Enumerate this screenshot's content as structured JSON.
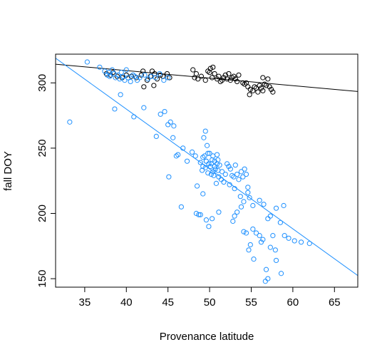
{
  "chart_data": {
    "type": "scatter",
    "title": "",
    "xlabel": "Provenance latitude",
    "ylabel": "fall DOY",
    "xlim": [
      31.5,
      67.8
    ],
    "ylim": [
      143.5,
      322
    ],
    "x_ticks": [
      35,
      40,
      45,
      50,
      55,
      60,
      65
    ],
    "y_ticks": [
      150,
      200,
      250,
      300
    ],
    "grid": false,
    "legend": "none",
    "series": [
      {
        "color": "#000000",
        "marker": "open-circle",
        "points": [
          [
            37.6,
            307
          ],
          [
            38.1,
            306
          ],
          [
            38.4,
            308
          ],
          [
            38.9,
            305
          ],
          [
            39.5,
            304
          ],
          [
            40.0,
            306
          ],
          [
            40.6,
            305
          ],
          [
            41.2,
            304
          ],
          [
            41.8,
            306
          ],
          [
            42.0,
            309
          ],
          [
            42.1,
            297
          ],
          [
            42.5,
            302
          ],
          [
            42.9,
            305
          ],
          [
            43.1,
            309
          ],
          [
            43.3,
            298
          ],
          [
            43.4,
            307
          ],
          [
            43.7,
            303
          ],
          [
            44.1,
            306
          ],
          [
            44.4,
            305
          ],
          [
            44.9,
            307
          ],
          [
            45.2,
            304
          ],
          [
            48.0,
            310
          ],
          [
            48.2,
            304
          ],
          [
            48.4,
            307
          ],
          [
            48.6,
            303
          ],
          [
            49.0,
            305
          ],
          [
            49.5,
            302
          ],
          [
            49.8,
            309
          ],
          [
            50.0,
            308
          ],
          [
            50.1,
            311
          ],
          [
            50.3,
            304
          ],
          [
            50.4,
            312
          ],
          [
            50.6,
            307
          ],
          [
            50.9,
            303
          ],
          [
            51.1,
            305
          ],
          [
            51.3,
            301
          ],
          [
            51.5,
            302
          ],
          [
            51.7,
            304
          ],
          [
            51.9,
            306
          ],
          [
            52.1,
            303
          ],
          [
            52.3,
            307
          ],
          [
            52.5,
            302
          ],
          [
            52.7,
            304
          ],
          [
            52.9,
            305
          ],
          [
            53.1,
            303
          ],
          [
            53.3,
            301
          ],
          [
            53.5,
            306
          ],
          [
            54.0,
            300
          ],
          [
            54.2,
            299
          ],
          [
            54.4,
            300
          ],
          [
            54.6,
            297
          ],
          [
            54.9,
            295
          ],
          [
            55.2,
            294
          ],
          [
            55.4,
            297
          ],
          [
            55.6,
            296
          ],
          [
            55.8,
            293
          ],
          [
            56.0,
            298
          ],
          [
            56.2,
            296
          ],
          [
            56.4,
            294
          ],
          [
            56.6,
            299
          ],
          [
            56.8,
            298
          ],
          [
            57.0,
            303
          ],
          [
            57.2,
            297
          ],
          [
            57.4,
            295
          ],
          [
            57.6,
            293
          ],
          [
            56.4,
            304
          ],
          [
            54.8,
            291
          ]
        ],
        "trend": {
          "x": [
            31.5,
            67.8
          ],
          "y": [
            314.3,
            293.4
          ]
        }
      },
      {
        "color": "#1e90ff",
        "marker": "open-circle",
        "points": [
          [
            33.2,
            270
          ],
          [
            35.3,
            316
          ],
          [
            36.8,
            312
          ],
          [
            37.4,
            309
          ],
          [
            37.7,
            306
          ],
          [
            37.9,
            308
          ],
          [
            38.0,
            305
          ],
          [
            38.3,
            310
          ],
          [
            38.5,
            307
          ],
          [
            38.7,
            304
          ],
          [
            39.0,
            306
          ],
          [
            39.2,
            303
          ],
          [
            39.4,
            308
          ],
          [
            39.6,
            305
          ],
          [
            39.8,
            302
          ],
          [
            40.0,
            310
          ],
          [
            40.2,
            304
          ],
          [
            40.5,
            301
          ],
          [
            40.8,
            306
          ],
          [
            41.0,
            305
          ],
          [
            41.3,
            302
          ],
          [
            41.6,
            304
          ],
          [
            42.2,
            306
          ],
          [
            42.6,
            303
          ],
          [
            43.0,
            305
          ],
          [
            43.5,
            304
          ],
          [
            44.0,
            307
          ],
          [
            44.5,
            302
          ],
          [
            45.0,
            304
          ],
          [
            38.6,
            280
          ],
          [
            39.3,
            291
          ],
          [
            40.9,
            274
          ],
          [
            42.1,
            281
          ],
          [
            43.6,
            259
          ],
          [
            44.1,
            276
          ],
          [
            44.6,
            278
          ],
          [
            45.0,
            268
          ],
          [
            45.3,
            270
          ],
          [
            45.6,
            258
          ],
          [
            45.7,
            267
          ],
          [
            46.2,
            245
          ],
          [
            46.8,
            250
          ],
          [
            47.3,
            240
          ],
          [
            47.9,
            247
          ],
          [
            48.3,
            244
          ],
          [
            48.5,
            221
          ],
          [
            48.9,
            239
          ],
          [
            49.1,
            233
          ],
          [
            49.2,
            236
          ],
          [
            49.3,
            258
          ],
          [
            49.4,
            244
          ],
          [
            49.5,
            263
          ],
          [
            49.6,
            240
          ],
          [
            49.7,
            252
          ],
          [
            49.8,
            231
          ],
          [
            49.9,
            238
          ],
          [
            50.0,
            246
          ],
          [
            50.1,
            236
          ],
          [
            50.2,
            230
          ],
          [
            50.3,
            241
          ],
          [
            50.4,
            244
          ],
          [
            50.5,
            229
          ],
          [
            50.6,
            240
          ],
          [
            50.7,
            234
          ],
          [
            50.8,
            223
          ],
          [
            50.9,
            245
          ],
          [
            51.0,
            233
          ],
          [
            51.1,
            228
          ],
          [
            51.2,
            237
          ],
          [
            51.4,
            226
          ],
          [
            51.5,
            232
          ],
          [
            51.7,
            224
          ],
          [
            51.9,
            230
          ],
          [
            52.1,
            238
          ],
          [
            52.3,
            236
          ],
          [
            52.5,
            234
          ],
          [
            52.7,
            229
          ],
          [
            52.9,
            228
          ],
          [
            53.1,
            237
          ],
          [
            53.3,
            230
          ],
          [
            53.5,
            226
          ],
          [
            53.8,
            232
          ],
          [
            54.0,
            228
          ],
          [
            54.2,
            234
          ],
          [
            54.4,
            230
          ],
          [
            54.6,
            220
          ],
          [
            54.8,
            212
          ],
          [
            55.2,
            206
          ],
          [
            56.0,
            210
          ],
          [
            56.5,
            207
          ],
          [
            57.0,
            196
          ],
          [
            57.3,
            198
          ],
          [
            58.0,
            204
          ],
          [
            58.5,
            193
          ],
          [
            49.6,
            240
          ],
          [
            50.2,
            238
          ],
          [
            49.2,
            243
          ],
          [
            50.6,
            236
          ],
          [
            49.8,
            246
          ],
          [
            50.4,
            232
          ],
          [
            51.0,
            241
          ],
          [
            49.5,
            235
          ],
          [
            50.9,
            238
          ],
          [
            52.4,
            222
          ],
          [
            53.0,
            219
          ],
          [
            53.7,
            213
          ],
          [
            54.1,
            209
          ],
          [
            45.1,
            228
          ],
          [
            46.0,
            244
          ],
          [
            46.6,
            205
          ],
          [
            48.4,
            200
          ],
          [
            48.7,
            199
          ],
          [
            48.9,
            199
          ],
          [
            49.2,
            215
          ],
          [
            49.6,
            195
          ],
          [
            49.9,
            190
          ],
          [
            50.3,
            196
          ],
          [
            51.1,
            201
          ],
          [
            52.8,
            194
          ],
          [
            53.3,
            201
          ],
          [
            54.1,
            186
          ],
          [
            54.4,
            185
          ],
          [
            54.9,
            176
          ],
          [
            55.2,
            188
          ],
          [
            55.6,
            185
          ],
          [
            56.0,
            183
          ],
          [
            56.4,
            180
          ],
          [
            56.8,
            157
          ],
          [
            57.0,
            150
          ],
          [
            57.3,
            174
          ],
          [
            57.6,
            183
          ],
          [
            58.0,
            164
          ],
          [
            58.6,
            154
          ],
          [
            59.0,
            183
          ],
          [
            59.5,
            181
          ],
          [
            60.2,
            179
          ],
          [
            61.0,
            178
          ],
          [
            62.0,
            177
          ],
          [
            54.7,
            172
          ],
          [
            55.3,
            165
          ],
          [
            56.2,
            178
          ],
          [
            57.9,
            172
          ],
          [
            53.8,
            205
          ],
          [
            54.6,
            216
          ],
          [
            58.9,
            206
          ],
          [
            53.0,
            198
          ],
          [
            56.7,
            148
          ]
        ],
        "trend": {
          "x": [
            31.5,
            67.8
          ],
          "y": [
            318.9,
            152.4
          ]
        }
      }
    ]
  }
}
